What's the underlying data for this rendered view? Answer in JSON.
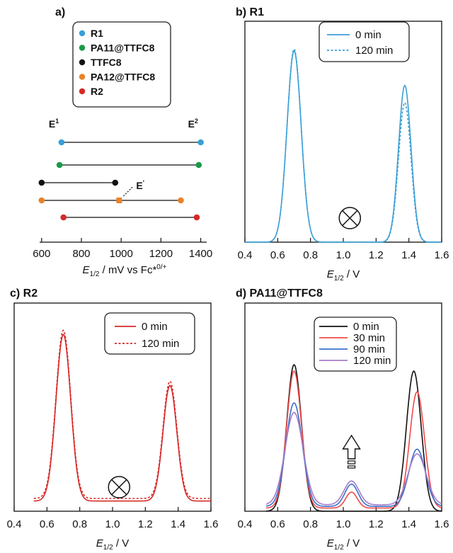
{
  "panels": {
    "a": {
      "label": "a)"
    },
    "b": {
      "label": "b) R1"
    },
    "c": {
      "label": "c) R2"
    },
    "d": {
      "label": "d) PA11@TTFC8"
    }
  },
  "chart_data": [
    {
      "id": "a",
      "type": "scatter",
      "legend": [
        {
          "name": "R1",
          "color": "#3a9fd6"
        },
        {
          "name": "PA11@TTFC8",
          "color": "#1a9a48"
        },
        {
          "name": "TTFC8",
          "color": "#111111"
        },
        {
          "name": "PA12@TTFC8",
          "color": "#e8832a"
        },
        {
          "name": "R2",
          "color": "#d62828"
        }
      ],
      "rows": [
        {
          "name": "R1",
          "e1": 700,
          "e2": 1400
        },
        {
          "name": "PA11@TTFC8",
          "e1": 690,
          "e2": 1390
        },
        {
          "name": "TTFC8",
          "e1": 600,
          "e2": 970
        },
        {
          "name": "PA12@TTFC8",
          "e1": 600,
          "emid": 990,
          "e2": 1300
        },
        {
          "name": "R2",
          "e1": 710,
          "e2": 1380
        }
      ],
      "annotations": {
        "e1": "E",
        "e1_sup": "1",
        "e2": "E",
        "e2_sup": "2",
        "ep": "E",
        "ep_sup": "'"
      },
      "xticks": [
        600,
        800,
        1000,
        1200,
        1400
      ],
      "xlim": [
        590,
        1430
      ],
      "xlabel_main": "E",
      "xlabel_sub": "1/2",
      "xlabel_rest": " / mV vs Fc*",
      "xlabel_sup": "0/+"
    },
    {
      "id": "b",
      "type": "line",
      "xlim": [
        0.4,
        1.6
      ],
      "xticks": [
        "0.4",
        "0.6",
        "0.8",
        "1.0",
        "1.2",
        "1.4",
        "1.6"
      ],
      "xlabel_main": "E",
      "xlabel_sub": "1/2",
      "xlabel_rest": " / V",
      "marker": "crossed-circle",
      "marker_x": 1.04,
      "series": [
        {
          "name": "0 min",
          "color": "#3a9fd6",
          "dash": false,
          "peaks": [
            [
              0.7,
              1.0,
              0.043
            ],
            [
              1.375,
              0.82,
              0.038
            ]
          ],
          "baseline": 0.0
        },
        {
          "name": "120 min",
          "color": "#3a9fd6",
          "dash": true,
          "peaks": [
            [
              0.7,
              1.01,
              0.043
            ],
            [
              1.375,
              0.73,
              0.038
            ]
          ],
          "baseline": 0.0
        }
      ]
    },
    {
      "id": "c",
      "type": "line",
      "xlim": [
        0.4,
        1.6
      ],
      "xticks": [
        "0.4",
        "0.6",
        "0.8",
        "1.0",
        "1.2",
        "1.4",
        "1.6"
      ],
      "xlabel_main": "E",
      "xlabel_sub": "1/2",
      "xlabel_rest": " / V",
      "marker": "crossed-circle",
      "marker_x": 1.04,
      "series": [
        {
          "name": "0 min",
          "color": "#d62828",
          "dash": false,
          "peaks": [
            [
              0.7,
              0.98,
              0.045
            ],
            [
              1.35,
              0.68,
              0.042
            ]
          ],
          "baseline": 0.06
        },
        {
          "name": "120 min",
          "color": "#d62828",
          "dash": true,
          "peaks": [
            [
              0.7,
              0.99,
              0.045
            ],
            [
              1.35,
              0.69,
              0.042
            ]
          ],
          "baseline": 0.075
        }
      ]
    },
    {
      "id": "d",
      "type": "line",
      "xlim": [
        0.4,
        1.6
      ],
      "xticks": [
        "0.4",
        "0.6",
        "0.8",
        "1.0",
        "1.2",
        "1.4",
        "1.6"
      ],
      "xlabel_main": "E",
      "xlabel_sub": "1/2",
      "xlabel_rest": " / V",
      "marker": "up-arrow",
      "marker_x": 1.05,
      "series": [
        {
          "name": "0 min",
          "color": "#111111",
          "dash": false,
          "peaks": [
            [
              0.7,
              0.92,
              0.045
            ],
            [
              1.43,
              0.88,
              0.045
            ]
          ],
          "baseline": 0.0
        },
        {
          "name": "30 min",
          "color": "#f04a4a",
          "dash": false,
          "peaks": [
            [
              0.7,
              0.86,
              0.045
            ],
            [
              1.05,
              0.1,
              0.035
            ],
            [
              1.45,
              0.73,
              0.045
            ]
          ],
          "baseline": 0.02
        },
        {
          "name": "90 min",
          "color": "#3d70c9",
          "dash": false,
          "peaks": [
            [
              0.7,
              0.65,
              0.05
            ],
            [
              1.05,
              0.14,
              0.04
            ],
            [
              1.45,
              0.36,
              0.05
            ]
          ],
          "baseline": 0.03
        },
        {
          "name": "120 min",
          "color": "#a47cc9",
          "dash": false,
          "peaks": [
            [
              0.7,
              0.58,
              0.055
            ],
            [
              1.05,
              0.15,
              0.045
            ],
            [
              1.45,
              0.32,
              0.055
            ]
          ],
          "baseline": 0.04
        }
      ]
    }
  ]
}
